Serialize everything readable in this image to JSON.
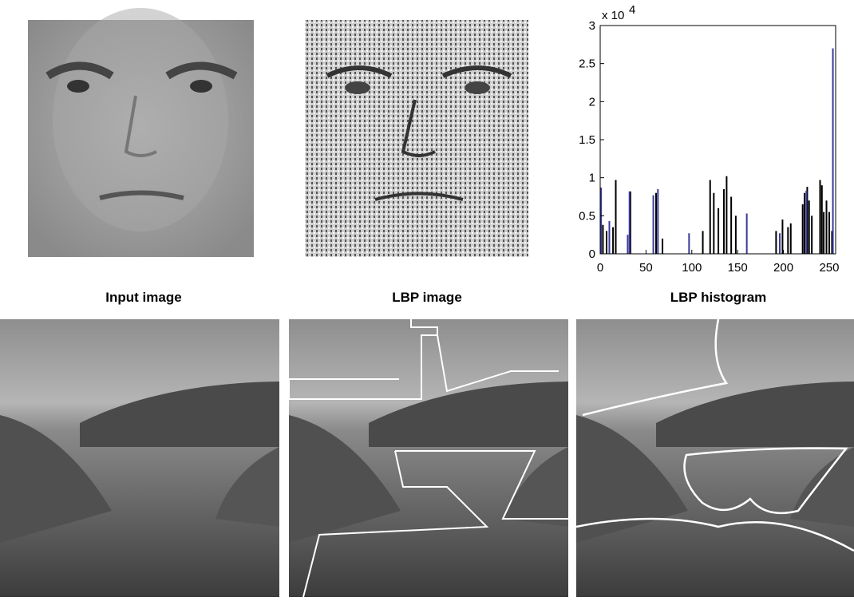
{
  "captions": [
    "Input image",
    "LBP image",
    "LBP histogram"
  ],
  "chart_data": {
    "type": "bar",
    "title": "LBP histogram",
    "y_scale_label": {
      "base": "x 10",
      "exponent": "4"
    },
    "xlim": [
      0,
      257
    ],
    "xticks": [
      0,
      50,
      100,
      150,
      200,
      250
    ],
    "ylim": [
      0,
      30000
    ],
    "yticks": [
      0,
      {
        "value": 5000,
        "label": "0.5"
      },
      {
        "value": 10000,
        "label": "1"
      },
      {
        "value": 15000,
        "label": "1.5"
      },
      {
        "value": 20000,
        "label": "2"
      },
      {
        "value": 25000,
        "label": "2.5"
      },
      {
        "value": 30000,
        "label": "3"
      }
    ],
    "series": [
      {
        "color": "#000000",
        "x": [
          3,
          7,
          14,
          17,
          33,
          61,
          68,
          112,
          120,
          124,
          129,
          135,
          138,
          143,
          148,
          192,
          199,
          205,
          208,
          221,
          223,
          226,
          228,
          231,
          240,
          242,
          244,
          247,
          250,
          253
        ],
        "values": [
          3800,
          3000,
          3500,
          9700,
          8200,
          8000,
          2000,
          3000,
          9700,
          8000,
          6000,
          8500,
          10200,
          7500,
          5000,
          3000,
          4500,
          3500,
          4000,
          6500,
          8000,
          8800,
          7000,
          5000,
          9700,
          9000,
          5500,
          7000,
          5500,
          3000
        ]
      },
      {
        "color": "#3a3a9a",
        "x": [
          1,
          10,
          30,
          32,
          58,
          63,
          97,
          160,
          196,
          225,
          254
        ],
        "values": [
          8700,
          4300,
          2500,
          8200,
          7700,
          8500,
          2700,
          5300,
          2700,
          8300,
          27000
        ]
      }
    ]
  }
}
